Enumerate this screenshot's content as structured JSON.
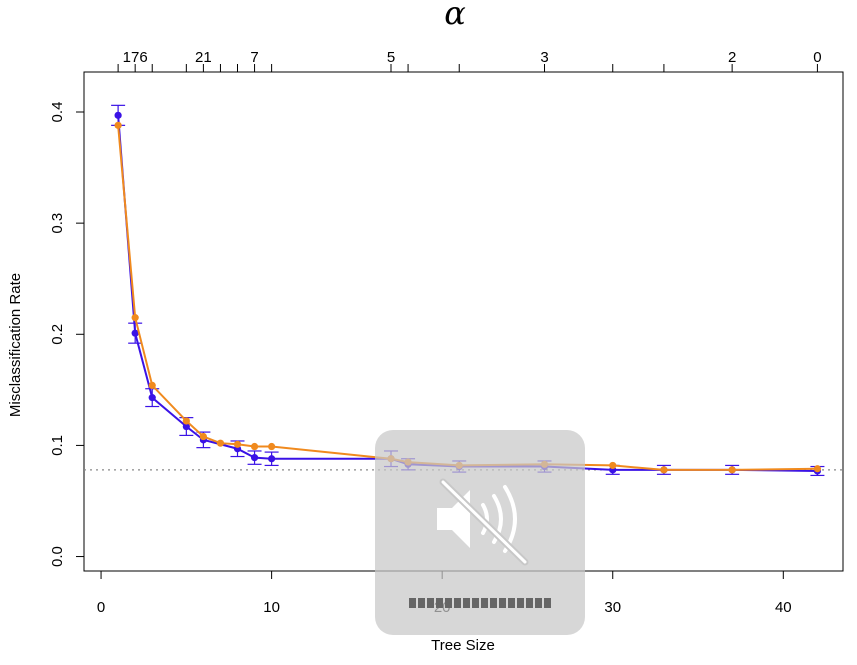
{
  "chart_data": {
    "type": "line",
    "top_title": "α",
    "xlabel": "Tree Size",
    "ylabel": "Misclassification Rate",
    "xlim": [
      -1,
      43.5
    ],
    "ylim": [
      -0.013,
      0.436
    ],
    "x_ticks": [
      0,
      10,
      20,
      30,
      40
    ],
    "y_ticks": [
      0.0,
      0.1,
      0.2,
      0.3,
      0.4
    ],
    "top_axis": {
      "tick_positions": [
        1,
        2,
        3,
        5,
        6,
        7,
        8,
        9,
        10,
        17,
        18,
        21,
        26,
        30,
        33,
        37,
        42
      ],
      "labels": [
        {
          "x": 2,
          "text": "176"
        },
        {
          "x": 6,
          "text": "21"
        },
        {
          "x": 9,
          "text": "7"
        },
        {
          "x": 17,
          "text": "5"
        },
        {
          "x": 26,
          "text": "3"
        },
        {
          "x": 37,
          "text": "2"
        },
        {
          "x": 42,
          "text": "0"
        }
      ]
    },
    "reference_line": {
      "y": 0.078,
      "style": "dotted",
      "color": "#888888"
    },
    "series": [
      {
        "color": "#3a12e6",
        "x": [
          1,
          2,
          3,
          5,
          6,
          8,
          9,
          10,
          17,
          18,
          21,
          26,
          30,
          33,
          37,
          42
        ],
        "y": [
          0.397,
          0.201,
          0.143,
          0.117,
          0.105,
          0.097,
          0.089,
          0.088,
          0.088,
          0.083,
          0.081,
          0.081,
          0.078,
          0.078,
          0.078,
          0.077
        ],
        "err": [
          0.009,
          0.009,
          0.008,
          0.008,
          0.007,
          0.007,
          0.006,
          0.006,
          0.007,
          0.005,
          0.005,
          0.005,
          0.004,
          0.004,
          0.004,
          0.004
        ]
      },
      {
        "color": "#f08a1e",
        "x": [
          1,
          2,
          3,
          5,
          6,
          7,
          8,
          9,
          10,
          17,
          18,
          21,
          26,
          30,
          33,
          37,
          42
        ],
        "y": [
          0.388,
          0.215,
          0.154,
          0.122,
          0.108,
          0.102,
          0.101,
          0.099,
          0.099,
          0.088,
          0.085,
          0.082,
          0.083,
          0.082,
          0.078,
          0.078,
          0.079
        ]
      }
    ]
  },
  "overlay": {
    "icon": "speaker-muted-icon",
    "volume_segments": 16,
    "volume_level": 0
  }
}
